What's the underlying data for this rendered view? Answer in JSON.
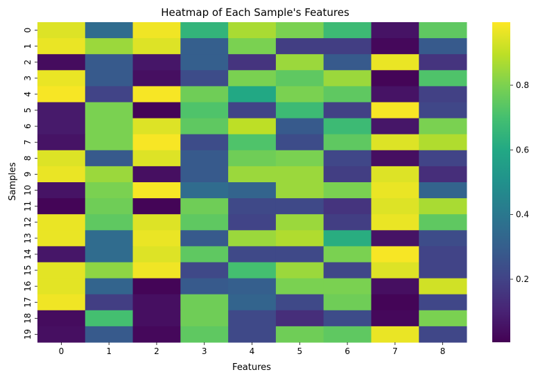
{
  "chart_data": {
    "type": "heatmap",
    "title": "Heatmap of Each Sample's Features",
    "xlabel": "Features",
    "ylabel": "Samples",
    "x_ticks": [
      "0",
      "1",
      "2",
      "3",
      "4",
      "5",
      "6",
      "7",
      "8"
    ],
    "y_ticks": [
      "0",
      "1",
      "2",
      "3",
      "4",
      "5",
      "6",
      "7",
      "8",
      "9",
      "10",
      "11",
      "12",
      "13",
      "14",
      "15",
      "16",
      "17",
      "18",
      "19"
    ],
    "colormap": "viridis",
    "vmin": 0.0,
    "vmax": 1.0,
    "colorbar_ticks": [
      "0.2",
      "0.4",
      "0.6",
      "0.8"
    ],
    "colorbar_tick_values": [
      0.2,
      0.4,
      0.6,
      0.8
    ],
    "values": [
      [
        0.95,
        0.35,
        0.98,
        0.65,
        0.87,
        0.8,
        0.68,
        0.05,
        0.75
      ],
      [
        0.97,
        0.85,
        0.95,
        0.3,
        0.8,
        0.18,
        0.18,
        0.02,
        0.28
      ],
      [
        0.03,
        0.28,
        0.06,
        0.3,
        0.15,
        0.85,
        0.28,
        0.97,
        0.15
      ],
      [
        0.97,
        0.28,
        0.04,
        0.23,
        0.8,
        0.75,
        0.85,
        0.01,
        0.72
      ],
      [
        0.99,
        0.2,
        0.99,
        0.78,
        0.6,
        0.8,
        0.75,
        0.05,
        0.19
      ],
      [
        0.07,
        0.8,
        0.01,
        0.72,
        0.2,
        0.68,
        0.19,
        0.99,
        0.21
      ],
      [
        0.07,
        0.8,
        0.95,
        0.75,
        0.9,
        0.28,
        0.68,
        0.06,
        0.8
      ],
      [
        0.05,
        0.8,
        0.99,
        0.23,
        0.72,
        0.23,
        0.75,
        0.95,
        0.88
      ],
      [
        0.95,
        0.28,
        0.95,
        0.28,
        0.78,
        0.8,
        0.21,
        0.04,
        0.2
      ],
      [
        0.97,
        0.85,
        0.04,
        0.28,
        0.85,
        0.85,
        0.18,
        0.95,
        0.13
      ],
      [
        0.05,
        0.8,
        0.99,
        0.35,
        0.32,
        0.85,
        0.8,
        0.97,
        0.32
      ],
      [
        0.01,
        0.78,
        0.01,
        0.78,
        0.22,
        0.22,
        0.15,
        0.95,
        0.87
      ],
      [
        0.97,
        0.75,
        0.95,
        0.75,
        0.2,
        0.85,
        0.18,
        0.97,
        0.75
      ],
      [
        0.97,
        0.35,
        0.97,
        0.28,
        0.85,
        0.88,
        0.62,
        0.05,
        0.23
      ],
      [
        0.06,
        0.35,
        0.95,
        0.75,
        0.22,
        0.22,
        0.8,
        0.99,
        0.2
      ],
      [
        0.96,
        0.83,
        0.98,
        0.22,
        0.7,
        0.85,
        0.21,
        0.95,
        0.2
      ],
      [
        0.96,
        0.32,
        0.01,
        0.28,
        0.3,
        0.8,
        0.8,
        0.04,
        0.93
      ],
      [
        0.98,
        0.18,
        0.04,
        0.78,
        0.32,
        0.22,
        0.78,
        0.01,
        0.21
      ],
      [
        0.03,
        0.7,
        0.04,
        0.78,
        0.22,
        0.13,
        0.23,
        0.02,
        0.8
      ],
      [
        0.04,
        0.28,
        0.02,
        0.75,
        0.22,
        0.78,
        0.75,
        0.97,
        0.21
      ]
    ]
  }
}
